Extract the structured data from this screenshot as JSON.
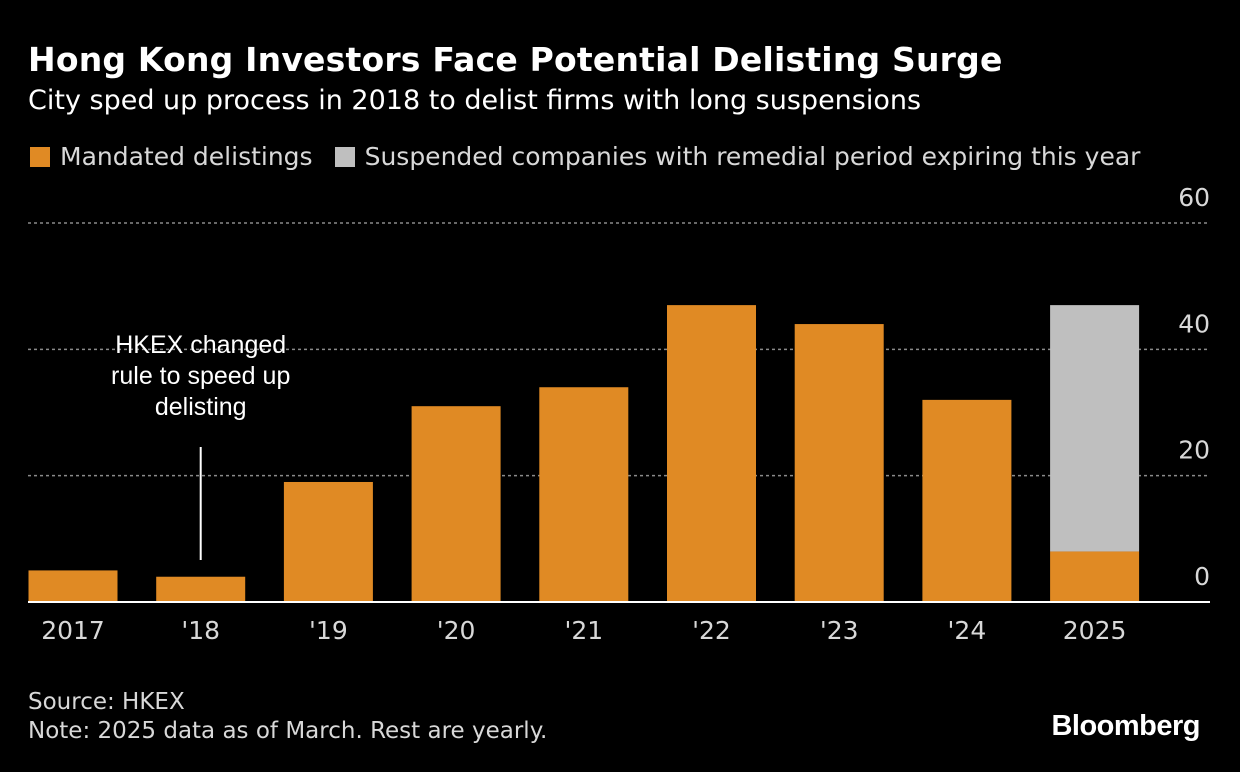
{
  "header": {
    "title": "Hong Kong Investors Face Potential Delisting Surge",
    "subtitle": "City sped up process in 2018 to delist firms with long suspensions"
  },
  "legend": [
    {
      "label": "Mandated delistings",
      "color": "#E08A24"
    },
    {
      "label": "Suspended companies with remedial period expiring this year",
      "color": "#BFBFBF"
    }
  ],
  "chart_data": {
    "type": "bar",
    "stacked": true,
    "categories": [
      "2017",
      "'18",
      "'19",
      "'20",
      "'21",
      "'22",
      "'23",
      "'24",
      "2025"
    ],
    "series": [
      {
        "name": "Mandated delistings",
        "color": "#E08A24",
        "values": [
          5,
          4,
          19,
          31,
          34,
          47,
          44,
          32,
          8
        ]
      },
      {
        "name": "Suspended companies with remedial period expiring this year",
        "color": "#BFBFBF",
        "values": [
          0,
          0,
          0,
          0,
          0,
          0,
          0,
          0,
          39
        ]
      }
    ],
    "ylim": [
      0,
      60
    ],
    "yticks": [
      0,
      20,
      40,
      60
    ],
    "y_axis_side": "right",
    "grid": true,
    "annotation": {
      "category": "'18",
      "lines": [
        "HKEX changed",
        "rule to speed up",
        "delisting"
      ]
    }
  },
  "footer": {
    "source": "Source: HKEX",
    "note": "Note: 2025 data as of March. Rest are yearly.",
    "brand": "Bloomberg"
  }
}
